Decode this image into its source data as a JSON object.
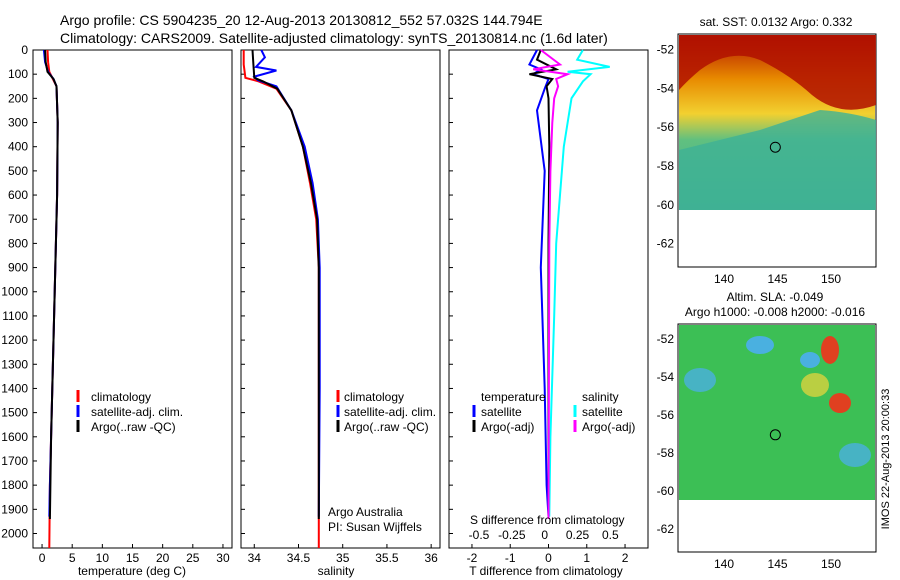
{
  "header": {
    "line1": "Argo profile: CS 5904235_20 12-Aug-2013 20130812_552 57.032S 144.794E",
    "line2": "Climatology: CARS2009. Satellite-adjusted climatology: synTS_20130814.nc (1.6d later)"
  },
  "credit": "IMOS 22-Aug-2013 20:00:33",
  "colors": {
    "clim": "#ff0000",
    "sat": "#0000ff",
    "argo": "#000000",
    "sal_sat": "#00ffff",
    "sal_argo": "#ff00ff"
  },
  "chart_data": [
    {
      "type": "line",
      "panel": "temperature",
      "xlabel": "temperature (deg C)",
      "xlim": [
        -1.5,
        31.5
      ],
      "xticks": [
        0,
        5,
        10,
        15,
        20,
        25,
        30
      ],
      "ylim": [
        2060,
        0
      ],
      "yticks": [
        0,
        100,
        200,
        300,
        400,
        500,
        600,
        700,
        800,
        900,
        1000,
        1100,
        1200,
        1300,
        1400,
        1500,
        1600,
        1700,
        1800,
        1900,
        2000
      ],
      "legend": [
        "climatology",
        "satellite-adj. clim.",
        "Argo(..raw -QC)"
      ],
      "series": [
        {
          "name": "climatology",
          "color": "#ff0000",
          "x": [
            0.9,
            1.0,
            1.2,
            1.8,
            2.4,
            2.6,
            2.5,
            2.3,
            2.1,
            1.9,
            1.7,
            1.5,
            1.3,
            1.2
          ],
          "y": [
            0,
            50,
            90,
            120,
            150,
            300,
            600,
            800,
            1000,
            1200,
            1400,
            1600,
            1800,
            2060
          ]
        },
        {
          "name": "satellite-adj. clim.",
          "color": "#0000ff",
          "x": [
            0.3,
            0.5,
            1.0,
            1.9,
            2.4,
            2.6,
            2.5,
            2.3,
            2.1,
            1.9,
            1.7,
            1.5,
            1.3,
            1.2
          ],
          "y": [
            0,
            50,
            90,
            120,
            150,
            300,
            600,
            800,
            1000,
            1200,
            1400,
            1600,
            1800,
            1930
          ]
        },
        {
          "name": "Argo(..raw -QC)",
          "color": "#000000",
          "x": [
            0.5,
            0.6,
            0.9,
            1.9,
            2.4,
            2.6,
            2.5,
            2.3,
            2.1,
            1.9,
            1.7,
            1.5,
            1.3
          ],
          "y": [
            0,
            50,
            90,
            120,
            150,
            300,
            600,
            800,
            1000,
            1200,
            1400,
            1600,
            1940
          ]
        }
      ]
    },
    {
      "type": "line",
      "panel": "salinity",
      "xlabel": "salinity",
      "xlim": [
        33.85,
        36.1
      ],
      "xticks": [
        34,
        34.5,
        35,
        35.5,
        36
      ],
      "ylim": [
        2060,
        0
      ],
      "legend": [
        "climatology",
        "satellite-adj. clim.",
        "Argo(..raw -QC)"
      ],
      "annotation": [
        "Argo Australia",
        "PI: Susan Wijffels"
      ],
      "series": [
        {
          "name": "climatology",
          "color": "#ff0000",
          "x": [
            33.88,
            33.88,
            33.9,
            34.05,
            34.25,
            34.42,
            34.55,
            34.63,
            34.7,
            34.73,
            34.73,
            34.73
          ],
          "y": [
            0,
            60,
            115,
            130,
            160,
            250,
            400,
            550,
            700,
            900,
            1400,
            2060
          ]
        },
        {
          "name": "satellite-adj. clim.",
          "color": "#0000ff",
          "x": [
            34.08,
            34.12,
            34.02,
            34.25,
            34.0,
            34.04,
            34.25,
            34.42,
            34.57,
            34.66,
            34.72,
            34.74,
            34.74,
            34.73
          ],
          "y": [
            0,
            30,
            70,
            85,
            110,
            125,
            150,
            250,
            400,
            550,
            700,
            900,
            1400,
            1930
          ]
        },
        {
          "name": "Argo(..raw -QC)",
          "color": "#000000",
          "x": [
            33.98,
            33.99,
            34.0,
            34.1,
            34.26,
            34.42,
            34.55,
            34.64,
            34.71,
            34.73,
            34.73
          ],
          "y": [
            0,
            60,
            115,
            130,
            160,
            250,
            400,
            550,
            700,
            900,
            1940
          ]
        }
      ]
    },
    {
      "type": "line",
      "panel": "difference",
      "xlabel": "T difference from climatology",
      "xlabel_top": "S difference from climatology",
      "xlim": [
        -2.6,
        2.6
      ],
      "xticks": [
        -2,
        -1,
        0,
        1,
        2
      ],
      "xticks_top": [
        -0.5,
        -0.25,
        0,
        0.25,
        0.5
      ],
      "ylim": [
        2060,
        0
      ],
      "legend_left_title": "temperature",
      "legend_right_title": "salinity",
      "legend_left": [
        "satellite",
        "Argo(-adj)"
      ],
      "legend_right": [
        "satellite",
        "Argo(-adj)"
      ],
      "series": [
        {
          "name": "temperature satellite",
          "color": "#0000ff",
          "x": [
            -0.3,
            -0.5,
            -0.2,
            -0.4,
            0.0,
            -0.1,
            -0.3,
            -0.1,
            -0.2,
            -0.1,
            -0.05,
            0.0
          ],
          "y": [
            0,
            60,
            80,
            100,
            120,
            160,
            250,
            500,
            900,
            1400,
            1800,
            1930
          ]
        },
        {
          "name": "temperature Argo(-adj)",
          "color": "#000000",
          "x": [
            -0.2,
            -0.3,
            0.2,
            -0.5,
            0.1,
            -0.05,
            0.0,
            0.02,
            0.0,
            0.0
          ],
          "y": [
            0,
            40,
            80,
            100,
            120,
            150,
            200,
            400,
            800,
            1940
          ]
        },
        {
          "name": "salinity satellite",
          "color": "#00ffff",
          "x": [
            0.9,
            0.75,
            1.6,
            0.5,
            1.1,
            0.9,
            0.6,
            0.4,
            0.2,
            0.15,
            0.05,
            0.02
          ],
          "y": [
            0,
            40,
            70,
            90,
            100,
            130,
            200,
            400,
            800,
            1100,
            1600,
            1930
          ]
        },
        {
          "name": "salinity Argo(-adj)",
          "color": "#ff00ff",
          "x": [
            -0.2,
            0.3,
            -0.4,
            0.5,
            0.2,
            0.25,
            0.15,
            0.1,
            0.05,
            0.02,
            0.0
          ],
          "y": [
            0,
            60,
            80,
            100,
            120,
            150,
            200,
            300,
            500,
            800,
            1940
          ]
        }
      ]
    },
    {
      "type": "heatmap",
      "panel": "sst-map",
      "title": "sat. SST: 0.0132 Argo: 0.332",
      "xticks": [
        140,
        145,
        150
      ],
      "yticks": [
        -52,
        -54,
        -56,
        -58,
        -60,
        -62
      ],
      "marker": {
        "lon": 144.794,
        "lat": -57.032
      }
    },
    {
      "type": "heatmap",
      "panel": "sla-map",
      "title": [
        "Altim. SLA: -0.049",
        "Argo h1000: -0.008 h2000: -0.016"
      ],
      "xticks": [
        140,
        145,
        150
      ],
      "yticks": [
        -52,
        -54,
        -56,
        -58,
        -60,
        -62
      ],
      "marker": {
        "lon": 144.794,
        "lat": -57.032
      }
    }
  ]
}
